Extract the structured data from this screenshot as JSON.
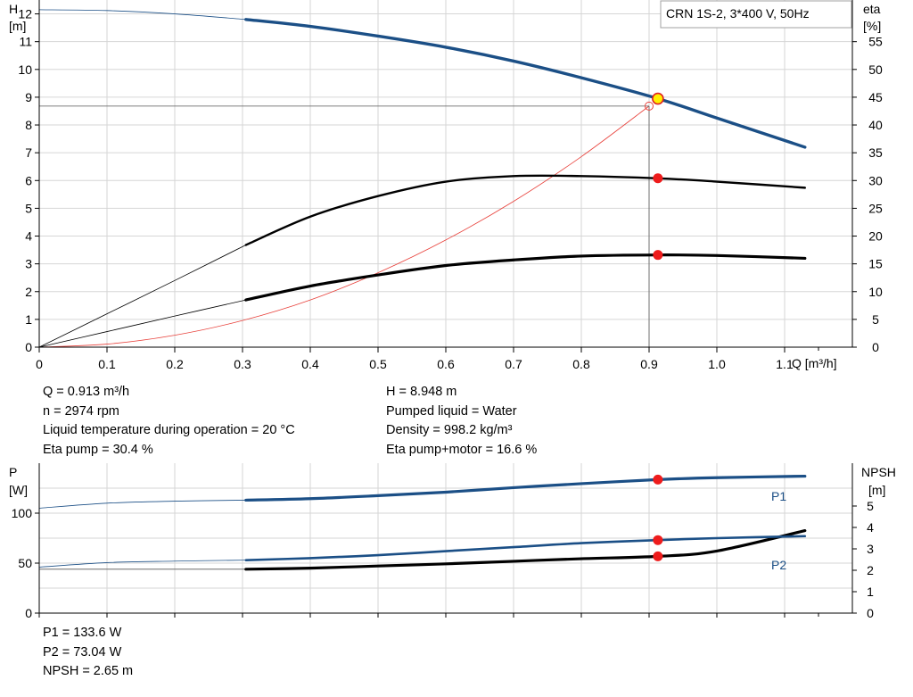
{
  "chart_data": [
    {
      "type": "line",
      "legend_label": "CRN 1S-2, 3*400 V, 50Hz",
      "xlabel": "Q [m³/h]",
      "ylabel_left": [
        "H",
        "[m]"
      ],
      "ylabel_right": [
        "eta",
        "[%]"
      ],
      "xlim": [
        0,
        1.2
      ],
      "ylim_left": [
        0,
        12.5
      ],
      "ylim_right": [
        0,
        62.5
      ],
      "x_ticks": [
        "0",
        "0.1",
        "0.2",
        "0.3",
        "0.4",
        "0.5",
        "0.6",
        "0.7",
        "0.8",
        "0.9",
        "1.0",
        "1.1"
      ],
      "y_ticks_left": [
        "0",
        "1",
        "2",
        "3",
        "4",
        "5",
        "6",
        "7",
        "8",
        "9",
        "10",
        "11",
        "12"
      ],
      "y_ticks_right": [
        "0",
        "5",
        "10",
        "15",
        "20",
        "25",
        "30",
        "35",
        "40",
        "45",
        "50",
        "55"
      ],
      "grid": true,
      "series": [
        {
          "axis": "left",
          "color": "#1b4f86",
          "x": [
            0,
            0.1,
            0.2,
            0.305,
            0.4,
            0.5,
            0.6,
            0.7,
            0.8,
            0.913,
            1.0,
            1.13
          ],
          "y": [
            12.15,
            12.12,
            12.0,
            11.8,
            11.55,
            11.2,
            10.8,
            10.3,
            9.7,
            8.95,
            8.25,
            7.2
          ]
        },
        {
          "axis": "right",
          "color": "#000000",
          "x": [
            0,
            0.1,
            0.2,
            0.305,
            0.4,
            0.5,
            0.6,
            0.7,
            0.8,
            0.913,
            1.0,
            1.13
          ],
          "y": [
            0,
            6.0,
            12.0,
            18.4,
            23.5,
            27.2,
            29.8,
            30.8,
            30.8,
            30.4,
            29.8,
            28.7
          ]
        },
        {
          "axis": "right",
          "color": "#000000",
          "x": [
            0,
            0.1,
            0.2,
            0.305,
            0.4,
            0.5,
            0.6,
            0.7,
            0.8,
            0.913,
            1.0,
            1.13
          ],
          "y": [
            0,
            2.8,
            5.6,
            8.5,
            11.0,
            13.0,
            14.7,
            15.7,
            16.4,
            16.6,
            16.5,
            16.0
          ]
        },
        {
          "axis": "left",
          "color": "#e8413b",
          "x": [
            0,
            0.1,
            0.2,
            0.3,
            0.4,
            0.5,
            0.6,
            0.7,
            0.8,
            0.9
          ],
          "y": [
            0,
            0.11,
            0.43,
            0.96,
            1.7,
            2.68,
            3.86,
            5.25,
            6.86,
            8.68
          ]
        }
      ],
      "duty_point": {
        "q": 0.913,
        "h": 8.948,
        "eta_pump": 30.4,
        "eta_total": 16.6
      }
    },
    {
      "type": "line",
      "xlim": [
        0,
        1.2
      ],
      "ylabel_left": [
        "P",
        "[W]"
      ],
      "ylabel_right": [
        "NPSH",
        "[m]"
      ],
      "ylim_left": [
        0,
        150
      ],
      "ylim_right": [
        0,
        7
      ],
      "y_ticks_left": [
        "0",
        "50",
        "100"
      ],
      "y_ticks_right": [
        "0",
        "1",
        "2",
        "3",
        "4",
        "5"
      ],
      "grid": true,
      "series": [
        {
          "name": "P1",
          "axis": "left",
          "color": "#1b4f86",
          "x": [
            0,
            0.1,
            0.2,
            0.305,
            0.4,
            0.5,
            0.6,
            0.7,
            0.8,
            0.913,
            1.0,
            1.13
          ],
          "y": [
            105,
            110,
            112,
            113,
            114.5,
            117.5,
            121,
            125.5,
            129.5,
            133.6,
            135.5,
            137
          ]
        },
        {
          "name": "P2",
          "axis": "left",
          "color": "#1b4f86",
          "x": [
            0,
            0.1,
            0.2,
            0.305,
            0.4,
            0.5,
            0.6,
            0.7,
            0.8,
            0.913,
            1.0,
            1.13
          ],
          "y": [
            46,
            50.5,
            52,
            53,
            55,
            58,
            62,
            66,
            70,
            73.04,
            75,
            77
          ]
        },
        {
          "axis": "right",
          "color": "#000000",
          "x": [
            0,
            0.1,
            0.2,
            0.305,
            0.4,
            0.5,
            0.6,
            0.7,
            0.8,
            0.913,
            1.0,
            1.13
          ],
          "y": [
            2.05,
            2.05,
            2.05,
            2.05,
            2.1,
            2.2,
            2.3,
            2.42,
            2.54,
            2.65,
            2.9,
            3.85
          ]
        }
      ]
    }
  ],
  "info_top": {
    "q": "Q = 0.913 m³/h",
    "n": "n = 2974 rpm",
    "temp": "Liquid temperature during operation = 20 °C",
    "eta_pump": "Eta pump = 30.4 %",
    "h": "H = 8.948 m",
    "liquid": "Pumped liquid = Water",
    "density": "Density = 998.2 kg/m³",
    "eta_total": "Eta pump+motor = 16.6 %"
  },
  "info_bottom": {
    "p1": "P1 = 133.6 W",
    "p2": "P2 = 73.04 W",
    "npsh": "NPSH = 2.65 m"
  }
}
